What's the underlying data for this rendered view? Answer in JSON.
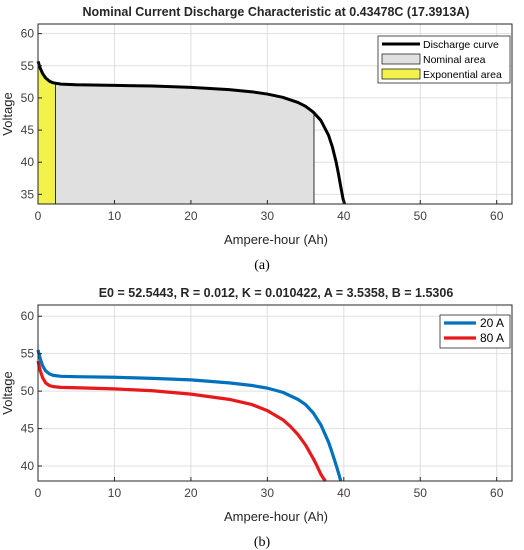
{
  "chart_data": [
    {
      "type": "area",
      "title": "Nominal Current Discharge Characteristic at 0.43478C (17.3913A)",
      "xlabel": "Ampere-hour (Ah)",
      "ylabel": "Voltage",
      "xlim": [
        0,
        62
      ],
      "ylim": [
        33.5,
        61.5
      ],
      "xticks": [
        "0",
        "10",
        "20",
        "30",
        "40",
        "50",
        "60"
      ],
      "yticks": [
        "35",
        "40",
        "45",
        "50",
        "55",
        "60"
      ],
      "grid": true,
      "legend_position": "top-right",
      "caption": "(a)",
      "series": [
        {
          "name": "Discharge curve",
          "color": "#000000",
          "x": [
            0,
            0.3,
            0.6,
            1.0,
            1.5,
            2.0,
            3.0,
            5.0,
            10,
            15,
            20,
            25,
            28,
            30,
            32,
            34,
            35,
            36,
            37,
            38,
            38.5,
            39,
            39.3,
            39.6,
            39.9,
            40.1
          ],
          "y": [
            55.7,
            54.6,
            53.8,
            53.1,
            52.6,
            52.35,
            52.15,
            52.05,
            51.95,
            51.85,
            51.65,
            51.3,
            50.95,
            50.6,
            50.1,
            49.3,
            48.7,
            47.8,
            46.5,
            44.2,
            42.4,
            40.0,
            38.2,
            36.2,
            34.3,
            33.5
          ]
        },
        {
          "name": "Nominal area",
          "color": "#e0e0e0",
          "x_range": [
            0,
            36.1
          ]
        },
        {
          "name": "Exponential area",
          "color": "#f2f24a",
          "x_range": [
            0,
            2.3
          ]
        }
      ]
    },
    {
      "type": "line",
      "title": "E0 = 52.5443, R = 0.012, K = 0.010422, A = 3.5358, B = 1.5306",
      "xlabel": "Ampere-hour (Ah)",
      "ylabel": "Voltage",
      "xlim": [
        0,
        62
      ],
      "ylim": [
        38,
        61.5
      ],
      "xticks": [
        "0",
        "10",
        "20",
        "30",
        "40",
        "50",
        "60"
      ],
      "yticks": [
        "40",
        "45",
        "50",
        "55",
        "60"
      ],
      "grid": true,
      "legend_position": "top-right",
      "caption": "(b)",
      "series": [
        {
          "name": "20 A",
          "color": "#0072bd",
          "x": [
            0,
            0.3,
            0.6,
            1.0,
            1.5,
            2.0,
            3.0,
            5.0,
            10,
            15,
            20,
            25,
            28,
            30,
            32,
            34,
            35,
            36,
            37,
            38,
            38.5,
            39,
            39.3,
            39.6
          ],
          "y": [
            55.5,
            54.3,
            53.4,
            52.7,
            52.3,
            52.1,
            51.98,
            51.93,
            51.85,
            51.7,
            51.5,
            51.1,
            50.75,
            50.4,
            49.85,
            48.9,
            48.2,
            47.1,
            45.5,
            43.2,
            41.7,
            40.1,
            39.1,
            38.0
          ]
        },
        {
          "name": "80 A",
          "color": "#e8191a",
          "x": [
            0,
            0.3,
            0.6,
            1.0,
            1.5,
            2.0,
            3.0,
            5.0,
            10,
            15,
            20,
            25,
            28,
            30,
            32,
            33,
            34,
            35,
            36,
            36.5,
            37,
            37.3,
            37.6
          ],
          "y": [
            54.0,
            52.7,
            51.8,
            51.1,
            50.75,
            50.6,
            50.5,
            50.45,
            50.3,
            50.05,
            49.6,
            48.9,
            48.2,
            47.4,
            46.2,
            45.3,
            44.2,
            42.8,
            41.0,
            40.0,
            38.9,
            38.4,
            38.0
          ]
        }
      ]
    }
  ]
}
